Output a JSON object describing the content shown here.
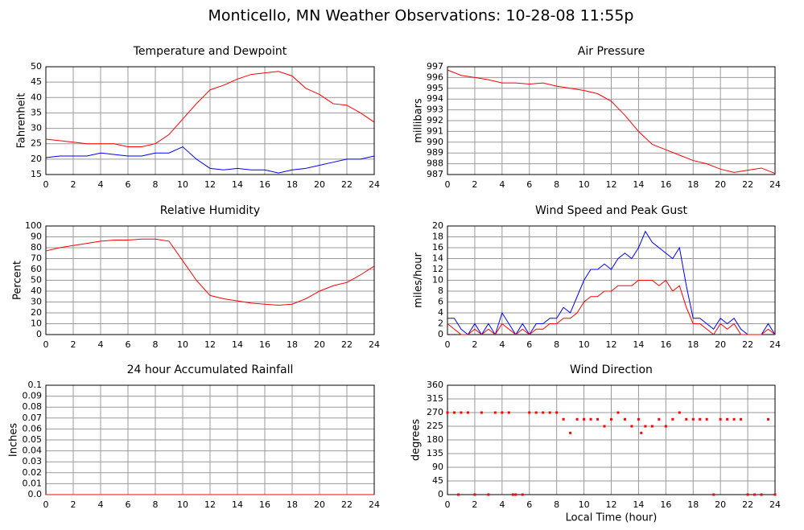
{
  "title": "Monticello, MN Weather Observations: 10-28-08 11:55p",
  "chart_data": [
    {
      "type": "line",
      "title": "Temperature and Dewpoint",
      "ylabel": "Fahrenheit",
      "xlim": [
        0,
        24
      ],
      "xticks": [
        0,
        2,
        4,
        6,
        8,
        10,
        12,
        14,
        16,
        18,
        20,
        22,
        24
      ],
      "ylim": [
        15,
        50
      ],
      "yticks": [
        15,
        20,
        25,
        30,
        35,
        40,
        45,
        50
      ],
      "grid": true,
      "x": [
        0,
        1,
        2,
        3,
        4,
        5,
        6,
        7,
        8,
        9,
        10,
        11,
        12,
        13,
        14,
        15,
        16,
        17,
        18,
        19,
        20,
        21,
        22,
        23,
        24
      ],
      "series": [
        {
          "color": "#ff0000",
          "values": [
            26.5,
            26,
            25.5,
            25,
            25,
            25,
            24,
            24,
            25,
            28,
            33,
            38,
            42.5,
            44,
            46,
            47.5,
            48,
            48.5,
            47,
            43,
            41,
            38,
            37.5,
            35,
            32
          ]
        },
        {
          "color": "#0000ff",
          "values": [
            20.5,
            21,
            21,
            21,
            22,
            21.5,
            21,
            21,
            22,
            22,
            24,
            20,
            17,
            16.5,
            17,
            16.5,
            16.5,
            15.5,
            16.5,
            17,
            18,
            19,
            20,
            20,
            21
          ]
        }
      ]
    },
    {
      "type": "line",
      "title": "Air Pressure",
      "ylabel": "millibars",
      "xlim": [
        0,
        24
      ],
      "xticks": [
        0,
        2,
        4,
        6,
        8,
        10,
        12,
        14,
        16,
        18,
        20,
        22,
        24
      ],
      "ylim": [
        987,
        997
      ],
      "yticks": [
        987,
        988,
        989,
        990,
        991,
        992,
        993,
        994,
        995,
        996,
        997
      ],
      "grid": true,
      "x": [
        0,
        1,
        2,
        3,
        4,
        5,
        6,
        7,
        8,
        9,
        10,
        11,
        12,
        13,
        14,
        15,
        16,
        17,
        18,
        19,
        20,
        21,
        22,
        23,
        24
      ],
      "series": [
        {
          "color": "#ff0000",
          "values": [
            996.7,
            996.2,
            996.0,
            995.8,
            995.5,
            995.5,
            995.4,
            995.5,
            995.2,
            995.0,
            994.8,
            994.5,
            993.8,
            992.5,
            991,
            989.8,
            989.3,
            988.8,
            988.3,
            988,
            987.5,
            987.2,
            987.4,
            987.6,
            987.1
          ]
        }
      ]
    },
    {
      "type": "line",
      "title": "Relative Humidity",
      "ylabel": "Percent",
      "xlim": [
        0,
        24
      ],
      "xticks": [
        0,
        2,
        4,
        6,
        8,
        10,
        12,
        14,
        16,
        18,
        20,
        22,
        24
      ],
      "ylim": [
        0,
        100
      ],
      "yticks": [
        0,
        10,
        20,
        30,
        40,
        50,
        60,
        70,
        80,
        90,
        100
      ],
      "grid": true,
      "x": [
        0,
        1,
        2,
        3,
        4,
        5,
        6,
        7,
        8,
        9,
        10,
        11,
        12,
        13,
        14,
        15,
        16,
        17,
        18,
        19,
        20,
        21,
        22,
        23,
        24
      ],
      "series": [
        {
          "color": "#ff0000",
          "values": [
            77,
            80,
            82,
            84,
            86,
            87,
            87,
            88,
            88,
            86,
            68,
            50,
            36,
            33,
            31,
            29,
            28,
            27,
            28,
            33,
            40,
            45,
            48,
            55,
            63
          ]
        }
      ]
    },
    {
      "type": "line",
      "title": "Wind Speed and Peak Gust",
      "ylabel": "miles/hour",
      "xlim": [
        0,
        24
      ],
      "xticks": [
        0,
        2,
        4,
        6,
        8,
        10,
        12,
        14,
        16,
        18,
        20,
        22,
        24
      ],
      "ylim": [
        0,
        20
      ],
      "yticks": [
        0,
        2,
        4,
        6,
        8,
        10,
        12,
        14,
        16,
        18,
        20
      ],
      "grid": true,
      "x": [
        0,
        0.5,
        1,
        1.5,
        2,
        2.5,
        3,
        3.5,
        4,
        4.5,
        5,
        5.5,
        6,
        6.5,
        7,
        7.5,
        8,
        8.5,
        9,
        9.5,
        10,
        10.5,
        11,
        11.5,
        12,
        12.5,
        13,
        13.5,
        14,
        14.5,
        15,
        15.5,
        16,
        16.5,
        17,
        17.5,
        18,
        18.5,
        19,
        19.5,
        20,
        20.5,
        21,
        21.5,
        22,
        22.5,
        23,
        23.5,
        24
      ],
      "series": [
        {
          "color": "#0000ff",
          "values": [
            3,
            3,
            1,
            0,
            2,
            0,
            2,
            0,
            4,
            2,
            0,
            2,
            0,
            2,
            2,
            3,
            3,
            5,
            4,
            7,
            10,
            12,
            12,
            13,
            12,
            14,
            15,
            14,
            16,
            19,
            17,
            16,
            15,
            14,
            16,
            9,
            3,
            3,
            2,
            1,
            3,
            2,
            3,
            1,
            0,
            0,
            0,
            2,
            0
          ]
        },
        {
          "color": "#ff0000",
          "values": [
            2,
            1,
            0,
            0,
            1,
            0,
            1,
            0,
            2,
            1,
            0,
            1,
            0,
            1,
            1,
            2,
            2,
            3,
            3,
            4,
            6,
            7,
            7,
            8,
            8,
            9,
            9,
            9,
            10,
            10,
            10,
            9,
            10,
            8,
            9,
            5,
            2,
            2,
            1,
            0,
            2,
            1,
            2,
            0,
            0,
            0,
            0,
            1,
            0
          ]
        }
      ]
    },
    {
      "type": "line",
      "title": "24 hour Accumulated Rainfall",
      "ylabel": "Inches",
      "xlim": [
        0,
        24
      ],
      "xticks": [
        0,
        2,
        4,
        6,
        8,
        10,
        12,
        14,
        16,
        18,
        20,
        22,
        24
      ],
      "ylim": [
        0,
        0.1
      ],
      "yticks": [
        {
          "value": 0,
          "label": "0.0"
        },
        0.01,
        0.02,
        0.03,
        0.04,
        0.05,
        0.06,
        0.07,
        0.08,
        0.09,
        0.1
      ],
      "grid": true,
      "x": [
        0,
        24
      ],
      "series": [
        {
          "color": "#ff0000",
          "values": [
            0,
            0
          ]
        }
      ]
    },
    {
      "type": "scatter",
      "title": "Wind Direction",
      "ylabel": "degrees",
      "xlabel": "Local Time (hour)",
      "xlim": [
        0,
        24
      ],
      "xticks": [
        0,
        2,
        4,
        6,
        8,
        10,
        12,
        14,
        16,
        18,
        20,
        22,
        24
      ],
      "ylim": [
        0,
        360
      ],
      "yticks": [
        0,
        45,
        90,
        135,
        180,
        225,
        270,
        315,
        360
      ],
      "grid": true,
      "x": [
        0,
        0.5,
        0.8,
        1,
        1.5,
        2,
        2.5,
        3,
        3.5,
        4,
        4.5,
        4.8,
        5,
        5.5,
        6,
        6.5,
        7,
        7.5,
        8,
        8.5,
        9,
        9.5,
        10,
        10.5,
        11,
        11.5,
        12,
        12.5,
        13,
        13.5,
        14,
        14.2,
        14.5,
        15,
        15.5,
        16,
        16.5,
        17,
        17.5,
        18,
        18.5,
        19,
        19.5,
        20,
        20.5,
        21,
        21.5,
        22,
        22.5,
        23,
        23.5,
        24
      ],
      "series": [
        {
          "color": "#ff0000",
          "values": [
            270,
            270,
            0,
            270,
            270,
            0,
            270,
            0,
            270,
            270,
            270,
            0,
            0,
            0,
            270,
            270,
            270,
            270,
            270,
            248,
            203,
            248,
            248,
            248,
            248,
            225,
            248,
            270,
            248,
            225,
            248,
            203,
            225,
            225,
            248,
            225,
            248,
            270,
            248,
            248,
            248,
            248,
            0,
            248,
            248,
            248,
            248,
            0,
            0,
            0,
            248,
            0
          ]
        }
      ]
    }
  ]
}
